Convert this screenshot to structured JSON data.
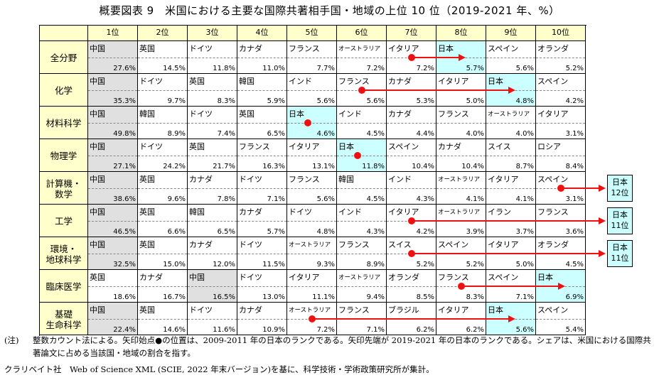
{
  "title": "概要図表 9　米国における主要な国際共著相手国・地域の上位 10 位（2019-2021 年、%）",
  "chart_data": {
    "type": "table",
    "columns": [
      "1位",
      "2位",
      "3位",
      "4位",
      "5位",
      "6位",
      "7位",
      "8位",
      "9位",
      "10位"
    ],
    "fields": [
      {
        "name": "全分野",
        "entries": [
          {
            "country": "中国",
            "share": "27.6%"
          },
          {
            "country": "英国",
            "share": "14.5%"
          },
          {
            "country": "ドイツ",
            "share": "11.8%"
          },
          {
            "country": "カナダ",
            "share": "11.0%"
          },
          {
            "country": "フランス",
            "share": "7.7%"
          },
          {
            "country": "オーストラリア",
            "share": "7.2%"
          },
          {
            "country": "イタリア",
            "share": "7.2%"
          },
          {
            "country": "日本",
            "share": "5.7%"
          },
          {
            "country": "スペイン",
            "share": "5.6%"
          },
          {
            "country": "オランダ",
            "share": "5.2%"
          }
        ],
        "japan_rank": 8,
        "japan_prev_rank": 7
      },
      {
        "name": "化学",
        "entries": [
          {
            "country": "中国",
            "share": "35.3%"
          },
          {
            "country": "ドイツ",
            "share": "9.7%"
          },
          {
            "country": "英国",
            "share": "8.3%"
          },
          {
            "country": "韓国",
            "share": "5.9%"
          },
          {
            "country": "インド",
            "share": "5.6%"
          },
          {
            "country": "フランス",
            "share": "5.6%"
          },
          {
            "country": "カナダ",
            "share": "5.3%"
          },
          {
            "country": "イタリア",
            "share": "5.0%"
          },
          {
            "country": "日本",
            "share": "4.8%"
          },
          {
            "country": "スペイン",
            "share": "4.2%"
          }
        ],
        "japan_rank": 9,
        "japan_prev_rank": 6
      },
      {
        "name": "材料科学",
        "entries": [
          {
            "country": "中国",
            "share": "49.8%"
          },
          {
            "country": "韓国",
            "share": "8.9%"
          },
          {
            "country": "ドイツ",
            "share": "7.4%"
          },
          {
            "country": "英国",
            "share": "6.5%"
          },
          {
            "country": "日本",
            "share": "4.6%"
          },
          {
            "country": "インド",
            "share": "4.5%"
          },
          {
            "country": "カナダ",
            "share": "4.4%"
          },
          {
            "country": "フランス",
            "share": "4.0%"
          },
          {
            "country": "オーストラリア",
            "share": "4.0%"
          },
          {
            "country": "イタリア",
            "share": "3.1%"
          }
        ],
        "japan_rank": 5,
        "japan_prev_rank": 5
      },
      {
        "name": "物理学",
        "entries": [
          {
            "country": "中国",
            "share": "27.1%"
          },
          {
            "country": "ドイツ",
            "share": "24.2%"
          },
          {
            "country": "英国",
            "share": "21.7%"
          },
          {
            "country": "フランス",
            "share": "16.3%"
          },
          {
            "country": "イタリア",
            "share": "13.1%"
          },
          {
            "country": "日本",
            "share": "11.8%"
          },
          {
            "country": "スペイン",
            "share": "10.4%"
          },
          {
            "country": "カナダ",
            "share": "10.4%"
          },
          {
            "country": "スイス",
            "share": "8.7%"
          },
          {
            "country": "ロシア",
            "share": "8.4%"
          }
        ],
        "japan_rank": 6,
        "japan_prev_rank": 6
      },
      {
        "name": "計算機・数学",
        "entries": [
          {
            "country": "中国",
            "share": "38.6%"
          },
          {
            "country": "英国",
            "share": "9.6%"
          },
          {
            "country": "カナダ",
            "share": "7.8%"
          },
          {
            "country": "ドイツ",
            "share": "7.1%"
          },
          {
            "country": "フランス",
            "share": "5.6%"
          },
          {
            "country": "韓国",
            "share": "4.5%"
          },
          {
            "country": "インド",
            "share": "4.3%"
          },
          {
            "country": "オーストラリア",
            "share": "4.1%"
          },
          {
            "country": "イタリア",
            "share": "4.1%"
          },
          {
            "country": "スペイン",
            "share": "3.1%"
          }
        ],
        "japan_rank": 12,
        "japan_prev_rank": 10,
        "japan_outside": "日本12位"
      },
      {
        "name": "工学",
        "entries": [
          {
            "country": "中国",
            "share": "46.5%"
          },
          {
            "country": "英国",
            "share": "6.6%"
          },
          {
            "country": "韓国",
            "share": "6.5%"
          },
          {
            "country": "カナダ",
            "share": "5.7%"
          },
          {
            "country": "ドイツ",
            "share": "4.8%"
          },
          {
            "country": "インド",
            "share": "4.3%"
          },
          {
            "country": "イタリア",
            "share": "4.2%"
          },
          {
            "country": "オーストラリア",
            "share": "3.9%"
          },
          {
            "country": "イラン",
            "share": "3.7%"
          },
          {
            "country": "フランス",
            "share": "3.6%"
          }
        ],
        "japan_rank": 11,
        "japan_prev_rank": 7,
        "japan_outside": "日本11位"
      },
      {
        "name": "環境・地球科学",
        "entries": [
          {
            "country": "中国",
            "share": "32.5%"
          },
          {
            "country": "英国",
            "share": "15.0%"
          },
          {
            "country": "カナダ",
            "share": "12.0%"
          },
          {
            "country": "ドイツ",
            "share": "11.5%"
          },
          {
            "country": "オーストラリア",
            "share": "9.3%"
          },
          {
            "country": "フランス",
            "share": "8.9%"
          },
          {
            "country": "スイス",
            "share": "5.2%"
          },
          {
            "country": "スペイン",
            "share": "5.2%"
          },
          {
            "country": "イタリア",
            "share": "5.0%"
          },
          {
            "country": "オランダ",
            "share": "4.5%"
          }
        ],
        "japan_rank": 11,
        "japan_prev_rank": 7,
        "japan_outside": "日本11位"
      },
      {
        "name": "臨床医学",
        "entries": [
          {
            "country": "英国",
            "share": "18.6%"
          },
          {
            "country": "カナダ",
            "share": "16.7%"
          },
          {
            "country": "中国",
            "share": "16.5%"
          },
          {
            "country": "ドイツ",
            "share": "13.0%"
          },
          {
            "country": "イタリア",
            "share": "11.1%"
          },
          {
            "country": "オーストラリア",
            "share": "9.4%"
          },
          {
            "country": "オランダ",
            "share": "8.5%"
          },
          {
            "country": "フランス",
            "share": "8.3%"
          },
          {
            "country": "スペイン",
            "share": "7.1%"
          },
          {
            "country": "日本",
            "share": "6.9%"
          }
        ],
        "japan_rank": 10,
        "japan_prev_rank": 8
      },
      {
        "name": "基礎生命科学",
        "entries": [
          {
            "country": "中国",
            "share": "22.4%"
          },
          {
            "country": "英国",
            "share": "14.6%"
          },
          {
            "country": "ドイツ",
            "share": "11.6%"
          },
          {
            "country": "カナダ",
            "share": "10.9%"
          },
          {
            "country": "オーストラリア",
            "share": "7.2%"
          },
          {
            "country": "フランス",
            "share": "7.1%"
          },
          {
            "country": "ブラジル",
            "share": "6.2%"
          },
          {
            "country": "イタリア",
            "share": "6.2%"
          },
          {
            "country": "日本",
            "share": "5.6%"
          },
          {
            "country": "スペイン",
            "share": "5.4%"
          }
        ],
        "japan_rank": 9,
        "japan_prev_rank": 5
      }
    ],
    "colors": {
      "header_fill": "#ffffcc",
      "china_fill": "#e0e0e0",
      "japan_fill": "#ccffff",
      "arrow": "#ee1111"
    }
  },
  "notes": {
    "tag": "(注)",
    "text": "整数カウント法による。矢印始点●の位置は、2009-2011 年の日本のランクである。矢印先端が 2019-2021 年の日本のランクである。シェアは、米国における国際共著論文に占める当該国・地域の割合を指す。",
    "source": "クラリベイト社　Web of Science XML (SCIE, 2022 年末バージョン)を基に、科学技術・学術政策研究所が集計。"
  }
}
